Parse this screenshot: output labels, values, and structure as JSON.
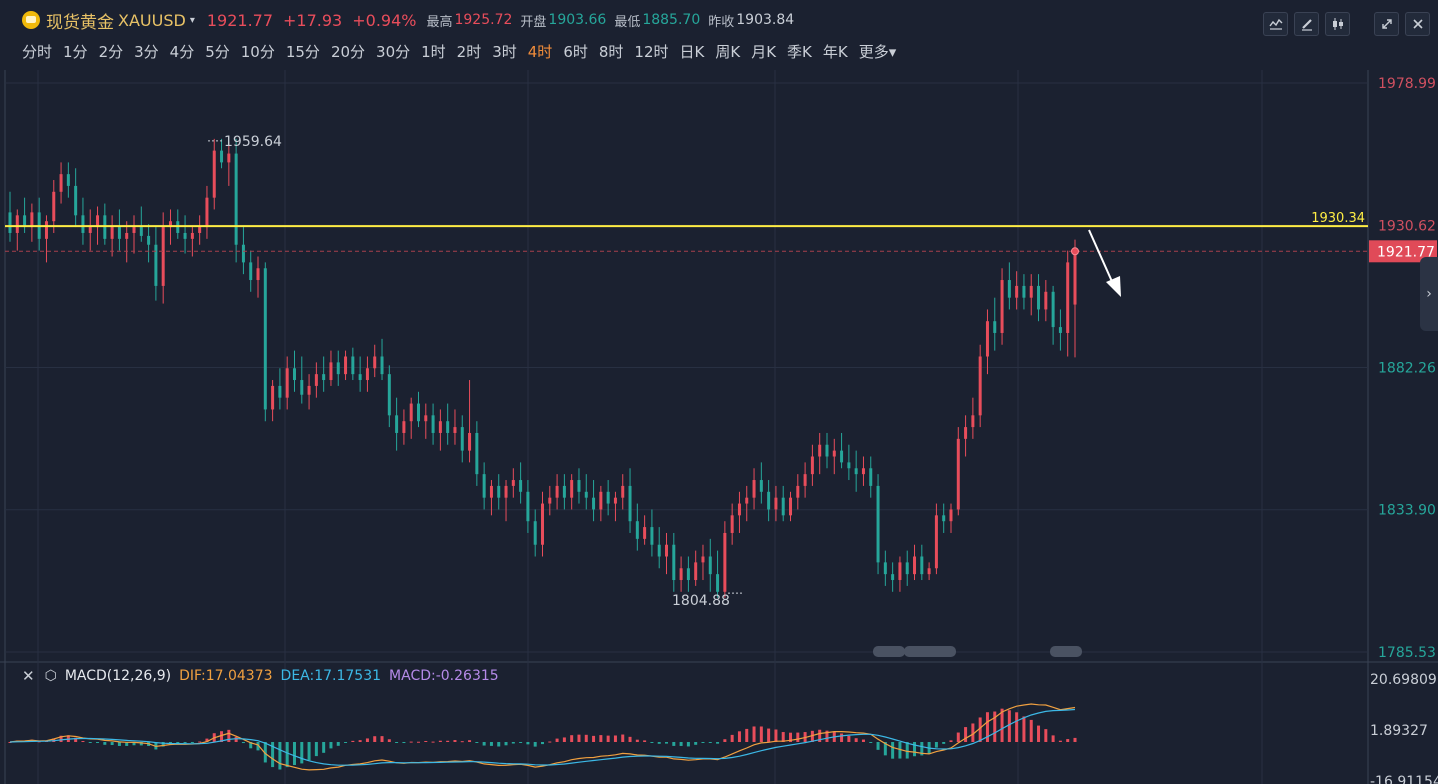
{
  "header": {
    "symbol_name": "现货黄金",
    "symbol_code": "XAUUSD",
    "price": "1921.77",
    "change": "+17.93",
    "change_pct": "+0.94%",
    "high_label": "最高",
    "high": "1925.72",
    "open_label": "开盘",
    "open": "1903.66",
    "low_label": "最低",
    "low": "1885.70",
    "prev_close_label": "昨收",
    "prev_close": "1903.84",
    "caret": "▾"
  },
  "periods": [
    "分时",
    "1分",
    "2分",
    "3分",
    "4分",
    "5分",
    "10分",
    "15分",
    "20分",
    "30分",
    "1时",
    "2时",
    "3时",
    "4时",
    "6时",
    "8时",
    "12时",
    "日K",
    "周K",
    "月K",
    "季K",
    "年K",
    "更多▾"
  ],
  "active_period": "4时",
  "tools": {
    "line_icon": "chart-line-icon",
    "draw_icon": "pencil-icon",
    "candle_icon": "candlestick-icon",
    "fullscreen_icon": "expand-icon",
    "close_icon": "close-icon"
  },
  "chart_data": {
    "type": "candlestick",
    "y_axis_labels": [
      "1978.99",
      "1930.62",
      "1882.26",
      "1833.90",
      "1785.53"
    ],
    "ylim": [
      1785.53,
      1978.99
    ],
    "current_price_label": "1921.77",
    "current_price": 1921.77,
    "resistance_line": {
      "value": 1930.34,
      "label": "1930.34",
      "color": "#ffee44"
    },
    "annotations": [
      {
        "text": "1959.64",
        "value": 1959.64
      },
      {
        "text": "1804.88",
        "value": 1804.88
      }
    ],
    "colors": {
      "up": "#e84d5b",
      "down": "#26a69a"
    },
    "ohlc": [
      [
        1935,
        1942,
        1925,
        1928
      ],
      [
        1928,
        1936,
        1922,
        1934
      ],
      [
        1934,
        1940,
        1928,
        1930
      ],
      [
        1930,
        1938,
        1925,
        1935
      ],
      [
        1935,
        1940,
        1922,
        1926
      ],
      [
        1926,
        1934,
        1918,
        1932
      ],
      [
        1932,
        1946,
        1928,
        1942
      ],
      [
        1942,
        1952,
        1938,
        1948
      ],
      [
        1948,
        1952,
        1940,
        1944
      ],
      [
        1944,
        1950,
        1930,
        1934
      ],
      [
        1934,
        1940,
        1924,
        1928
      ],
      [
        1928,
        1936,
        1922,
        1930
      ],
      [
        1930,
        1937,
        1924,
        1934
      ],
      [
        1934,
        1938,
        1924,
        1926
      ],
      [
        1926,
        1934,
        1920,
        1930
      ],
      [
        1930,
        1936,
        1922,
        1926
      ],
      [
        1926,
        1932,
        1918,
        1928
      ],
      [
        1928,
        1934,
        1921,
        1930
      ],
      [
        1930,
        1937,
        1925,
        1927
      ],
      [
        1927,
        1931,
        1918,
        1924
      ],
      [
        1924,
        1930,
        1905,
        1910
      ],
      [
        1910,
        1935,
        1904,
        1930
      ],
      [
        1930,
        1936,
        1924,
        1932
      ],
      [
        1932,
        1936,
        1926,
        1928
      ],
      [
        1928,
        1934,
        1921,
        1926
      ],
      [
        1926,
        1930,
        1920,
        1928
      ],
      [
        1928,
        1934,
        1924,
        1930
      ],
      [
        1930,
        1944,
        1926,
        1940
      ],
      [
        1940,
        1960,
        1936,
        1956
      ],
      [
        1956,
        1960,
        1950,
        1952
      ],
      [
        1952,
        1959,
        1944,
        1955
      ],
      [
        1955,
        1960,
        1918,
        1924
      ],
      [
        1924,
        1930,
        1914,
        1918
      ],
      [
        1918,
        1922,
        1908,
        1912
      ],
      [
        1912,
        1920,
        1906,
        1916
      ],
      [
        1916,
        1918,
        1864,
        1868
      ],
      [
        1868,
        1878,
        1864,
        1876
      ],
      [
        1876,
        1882,
        1868,
        1872
      ],
      [
        1872,
        1886,
        1868,
        1882
      ],
      [
        1882,
        1888,
        1874,
        1878
      ],
      [
        1878,
        1886,
        1870,
        1873
      ],
      [
        1873,
        1880,
        1868,
        1876
      ],
      [
        1876,
        1884,
        1872,
        1880
      ],
      [
        1880,
        1886,
        1874,
        1878
      ],
      [
        1878,
        1888,
        1876,
        1884
      ],
      [
        1884,
        1888,
        1876,
        1880
      ],
      [
        1880,
        1888,
        1878,
        1886
      ],
      [
        1886,
        1889,
        1878,
        1880
      ],
      [
        1880,
        1886,
        1874,
        1878
      ],
      [
        1878,
        1886,
        1874,
        1882
      ],
      [
        1882,
        1890,
        1879,
        1886
      ],
      [
        1886,
        1892,
        1878,
        1880
      ],
      [
        1880,
        1883,
        1862,
        1866
      ],
      [
        1866,
        1872,
        1854,
        1860
      ],
      [
        1860,
        1868,
        1856,
        1864
      ],
      [
        1864,
        1872,
        1858,
        1870
      ],
      [
        1870,
        1874,
        1862,
        1864
      ],
      [
        1864,
        1870,
        1858,
        1866
      ],
      [
        1866,
        1870,
        1856,
        1860
      ],
      [
        1860,
        1868,
        1854,
        1864
      ],
      [
        1864,
        1870,
        1856,
        1860
      ],
      [
        1860,
        1868,
        1856,
        1862
      ],
      [
        1862,
        1866,
        1850,
        1854
      ],
      [
        1854,
        1878,
        1850,
        1860
      ],
      [
        1860,
        1864,
        1842,
        1846
      ],
      [
        1846,
        1850,
        1834,
        1838
      ],
      [
        1838,
        1844,
        1832,
        1842
      ],
      [
        1842,
        1846,
        1834,
        1838
      ],
      [
        1838,
        1844,
        1830,
        1842
      ],
      [
        1842,
        1848,
        1838,
        1844
      ],
      [
        1844,
        1850,
        1836,
        1840
      ],
      [
        1840,
        1844,
        1826,
        1830
      ],
      [
        1830,
        1834,
        1818,
        1822
      ],
      [
        1822,
        1840,
        1818,
        1836
      ],
      [
        1836,
        1842,
        1832,
        1838
      ],
      [
        1838,
        1846,
        1834,
        1842
      ],
      [
        1842,
        1846,
        1834,
        1838
      ],
      [
        1838,
        1846,
        1834,
        1844
      ],
      [
        1844,
        1848,
        1836,
        1840
      ],
      [
        1840,
        1846,
        1834,
        1838
      ],
      [
        1838,
        1844,
        1830,
        1834
      ],
      [
        1834,
        1842,
        1830,
        1840
      ],
      [
        1840,
        1844,
        1832,
        1836
      ],
      [
        1836,
        1840,
        1830,
        1838
      ],
      [
        1838,
        1846,
        1834,
        1842
      ],
      [
        1842,
        1848,
        1826,
        1830
      ],
      [
        1830,
        1836,
        1820,
        1824
      ],
      [
        1824,
        1832,
        1822,
        1828
      ],
      [
        1828,
        1834,
        1818,
        1822
      ],
      [
        1822,
        1828,
        1814,
        1818
      ],
      [
        1818,
        1826,
        1812,
        1822
      ],
      [
        1822,
        1826,
        1806,
        1810
      ],
      [
        1810,
        1818,
        1806,
        1814
      ],
      [
        1814,
        1818,
        1806,
        1810
      ],
      [
        1810,
        1820,
        1808,
        1816
      ],
      [
        1816,
        1822,
        1810,
        1818
      ],
      [
        1818,
        1824,
        1806,
        1812
      ],
      [
        1812,
        1820,
        1804,
        1806
      ],
      [
        1806,
        1830,
        1804,
        1826
      ],
      [
        1826,
        1836,
        1822,
        1832
      ],
      [
        1832,
        1840,
        1826,
        1836
      ],
      [
        1836,
        1842,
        1830,
        1838
      ],
      [
        1838,
        1848,
        1834,
        1844
      ],
      [
        1844,
        1850,
        1836,
        1840
      ],
      [
        1840,
        1844,
        1830,
        1834
      ],
      [
        1834,
        1842,
        1830,
        1838
      ],
      [
        1838,
        1842,
        1830,
        1832
      ],
      [
        1832,
        1840,
        1830,
        1838
      ],
      [
        1838,
        1846,
        1834,
        1842
      ],
      [
        1842,
        1850,
        1838,
        1846
      ],
      [
        1846,
        1856,
        1842,
        1852
      ],
      [
        1852,
        1860,
        1846,
        1856
      ],
      [
        1856,
        1860,
        1848,
        1852
      ],
      [
        1852,
        1858,
        1846,
        1854
      ],
      [
        1854,
        1860,
        1848,
        1850
      ],
      [
        1850,
        1856,
        1844,
        1848
      ],
      [
        1848,
        1854,
        1840,
        1846
      ],
      [
        1846,
        1852,
        1842,
        1848
      ],
      [
        1848,
        1852,
        1838,
        1842
      ],
      [
        1842,
        1846,
        1812,
        1816
      ],
      [
        1816,
        1820,
        1808,
        1812
      ],
      [
        1812,
        1816,
        1806,
        1810
      ],
      [
        1810,
        1818,
        1806,
        1816
      ],
      [
        1816,
        1820,
        1808,
        1812
      ],
      [
        1812,
        1822,
        1810,
        1818
      ],
      [
        1818,
        1822,
        1810,
        1812
      ],
      [
        1812,
        1816,
        1810,
        1814
      ],
      [
        1814,
        1836,
        1812,
        1832
      ],
      [
        1832,
        1836,
        1826,
        1830
      ],
      [
        1830,
        1836,
        1826,
        1834
      ],
      [
        1834,
        1862,
        1832,
        1858
      ],
      [
        1858,
        1866,
        1852,
        1862
      ],
      [
        1862,
        1872,
        1858,
        1866
      ],
      [
        1866,
        1890,
        1862,
        1886
      ],
      [
        1886,
        1902,
        1880,
        1898
      ],
      [
        1898,
        1906,
        1888,
        1894
      ],
      [
        1894,
        1916,
        1890,
        1912
      ],
      [
        1912,
        1918,
        1902,
        1906
      ],
      [
        1906,
        1915,
        1902,
        1910
      ],
      [
        1910,
        1914,
        1902,
        1906
      ],
      [
        1906,
        1914,
        1900,
        1910
      ],
      [
        1910,
        1914,
        1898,
        1902
      ],
      [
        1902,
        1912,
        1898,
        1908
      ],
      [
        1908,
        1910,
        1890,
        1896
      ],
      [
        1896,
        1902,
        1888,
        1894
      ],
      [
        1894,
        1922,
        1886,
        1918
      ],
      [
        1903.66,
        1925.72,
        1885.7,
        1921.77
      ]
    ]
  },
  "macd": {
    "title": "MACD(12,26,9)",
    "dif_label": "DIF:17.04373",
    "dea_label": "DEA:17.17531",
    "macd_label": "MACD:-0.26315",
    "y_axis_labels": [
      "20.69809",
      "1.89327",
      "-16.91154"
    ],
    "ylim": [
      -16.91154,
      20.69809
    ],
    "colors": {
      "dif": "#f0a040",
      "dea": "#3cb8e6",
      "pos": "#e84d5b",
      "neg": "#26a69a"
    }
  }
}
